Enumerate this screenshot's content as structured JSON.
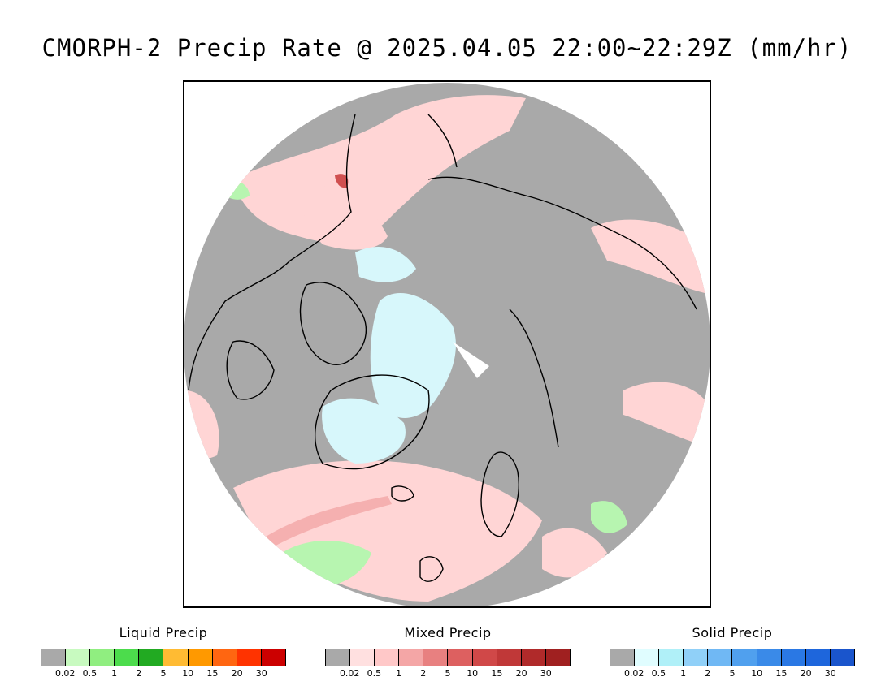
{
  "title": "CMORPH-2 Precip Rate @ 2025.04.05 22:00~22:29Z (mm/hr)",
  "map": {
    "projection": "north-polar-stereographic",
    "colors": {
      "no_precip": "#a9a9a9",
      "liquid_light": "#b7f5b0",
      "mixed_light": "#ffd5d5",
      "mixed_mid": "#f5b0b0",
      "mixed_dark": "#d05050",
      "solid_light": "#d7f7fb",
      "coast": "#000000",
      "background": "#ffffff"
    }
  },
  "legends": [
    {
      "title": "Liquid Precip",
      "colors": [
        "#a9a9a9",
        "#c8fac0",
        "#90ee80",
        "#4cdc4c",
        "#22aa22",
        "#ffbb33",
        "#ff9900",
        "#ff6611",
        "#ff3300",
        "#cc0000"
      ],
      "ticks": [
        "0.02",
        "0.5",
        "1",
        "2",
        "5",
        "10",
        "15",
        "20",
        "30"
      ]
    },
    {
      "title": "Mixed Precip",
      "colors": [
        "#a9a9a9",
        "#ffe0e0",
        "#ffc8c8",
        "#f4a6a6",
        "#e88080",
        "#dd6060",
        "#d04848",
        "#c03838",
        "#b02a2a",
        "#a02020"
      ],
      "ticks": [
        "0.02",
        "0.5",
        "1",
        "2",
        "5",
        "10",
        "15",
        "20",
        "30"
      ]
    },
    {
      "title": "Solid Precip",
      "colors": [
        "#a9a9a9",
        "#e0fdff",
        "#b0f0f8",
        "#90d0f8",
        "#70b8f4",
        "#50a0ee",
        "#3a8ae8",
        "#2a78e4",
        "#1e66dc",
        "#1a55cc"
      ],
      "ticks": [
        "0.02",
        "0.5",
        "1",
        "2",
        "5",
        "10",
        "15",
        "20",
        "30"
      ]
    }
  ]
}
